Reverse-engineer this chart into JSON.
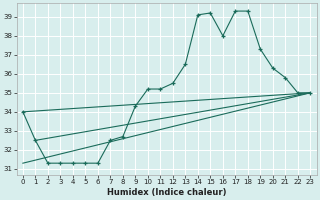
{
  "xlabel": "Humidex (Indice chaleur)",
  "bg_color": "#d8eeed",
  "grid_color": "#ffffff",
  "line_color": "#1a6b5a",
  "xlim": [
    -0.5,
    23.5
  ],
  "ylim": [
    30.7,
    39.7
  ],
  "xticks": [
    0,
    1,
    2,
    3,
    4,
    5,
    6,
    7,
    8,
    9,
    10,
    11,
    12,
    13,
    14,
    15,
    16,
    17,
    18,
    19,
    20,
    21,
    22,
    23
  ],
  "yticks": [
    31,
    32,
    33,
    34,
    35,
    36,
    37,
    38,
    39
  ],
  "line1_x": [
    0,
    1,
    2,
    3,
    4,
    5,
    6,
    7,
    8,
    9,
    10,
    11,
    12,
    13,
    14,
    15,
    16,
    17,
    18,
    19,
    20,
    21,
    22,
    23
  ],
  "line1_y": [
    34.0,
    32.5,
    31.3,
    31.3,
    31.3,
    31.3,
    31.3,
    32.5,
    32.7,
    34.3,
    35.2,
    35.2,
    35.5,
    36.5,
    39.1,
    39.2,
    38.0,
    39.3,
    39.3,
    37.3,
    36.3,
    35.8,
    35.0,
    35.0
  ],
  "line2_x": [
    0,
    23
  ],
  "line2_y": [
    31.3,
    35.0
  ],
  "line3_x": [
    1,
    23
  ],
  "line3_y": [
    32.5,
    35.0
  ],
  "line4_x": [
    0,
    23
  ],
  "line4_y": [
    34.0,
    35.0
  ],
  "xtick_fontsize": 5,
  "ytick_fontsize": 5,
  "xlabel_fontsize": 6
}
